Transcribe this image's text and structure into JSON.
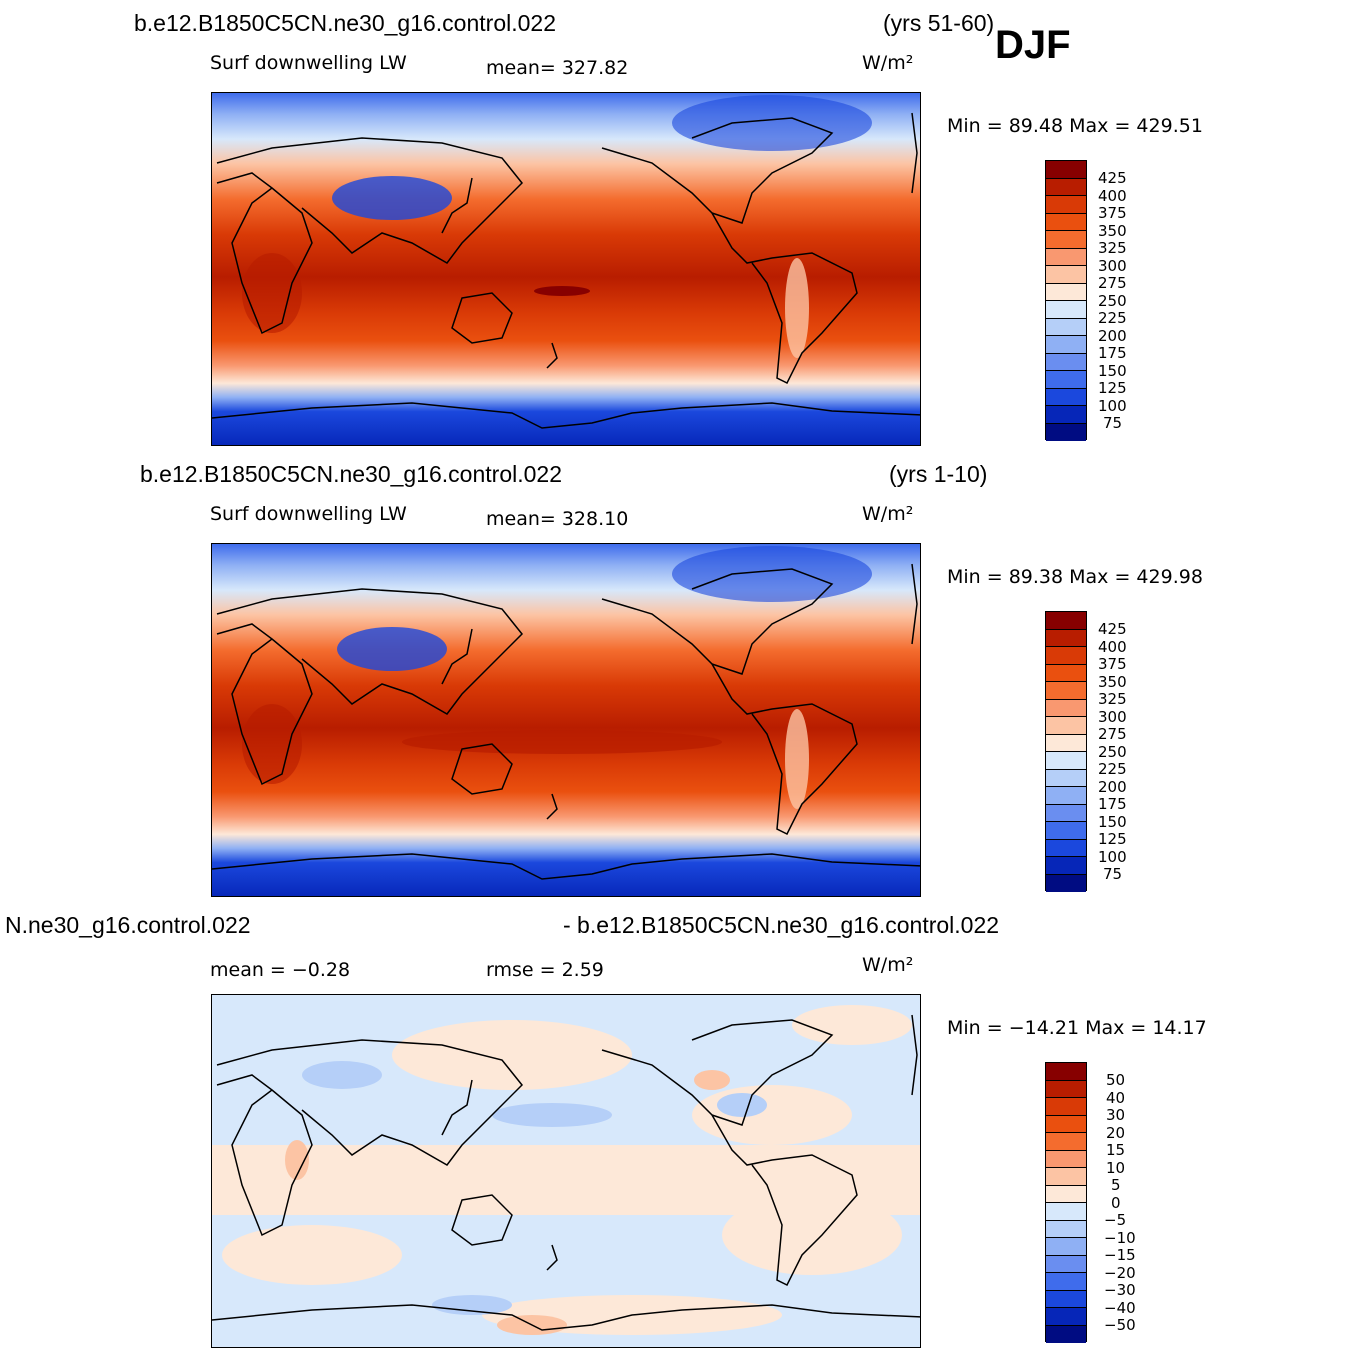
{
  "figure": {
    "season": "DJF",
    "units": "W/m²"
  },
  "panels": [
    {
      "case_name": "b.e12.B1850C5CN.ne30_g16.control.022",
      "years": "(yrs 51-60)",
      "variable": "Surf downwelling LW",
      "mean_text": "mean= 327.82",
      "minmax_text": "Min =   89.48 Max =  429.51"
    },
    {
      "case_name": "b.e12.B1850C5CN.ne30_g16.control.022",
      "years": "(yrs 1-10)",
      "variable": "Surf downwelling LW",
      "mean_text": "mean= 328.10",
      "minmax_text": "Min =   89.38 Max =  429.98"
    },
    {
      "case_left": "N.ne30_g16.control.022",
      "case_right": "- b.e12.B1850C5CN.ne30_g16.control.022",
      "mean_text": "mean =   −0.28",
      "rmse_text": "rmse =    2.59",
      "minmax_text": "Min = −14.21 Max =   14.17"
    }
  ],
  "colorbars": {
    "absolute": {
      "levels": [
        "425",
        "400",
        "375",
        "350",
        "325",
        "300",
        "275",
        "250",
        "225",
        "200",
        "175",
        "150",
        "125",
        "100",
        "75"
      ],
      "colors": [
        "#870000",
        "#b81d00",
        "#d93a06",
        "#ea500f",
        "#f46c2e",
        "#f99870",
        "#fcc4a4",
        "#fde8d8",
        "#d7e8fb",
        "#b5cff8",
        "#8fb0f4",
        "#6a8ef0",
        "#3f6cec",
        "#1b48dd",
        "#0626b8",
        "#000c82"
      ]
    },
    "difference": {
      "levels": [
        "50",
        "40",
        "30",
        "20",
        "15",
        "10",
        "5",
        "0",
        "−5",
        "−10",
        "−15",
        "−20",
        "−30",
        "−40",
        "−50"
      ],
      "colors": [
        "#870000",
        "#b81d00",
        "#d93a06",
        "#ea500f",
        "#f46c2e",
        "#f99870",
        "#fcc4a4",
        "#fde8d8",
        "#d7e8fb",
        "#b5cff8",
        "#8fb0f4",
        "#6a8ef0",
        "#3f6cec",
        "#1b48dd",
        "#0626b8",
        "#000c82"
      ]
    }
  }
}
